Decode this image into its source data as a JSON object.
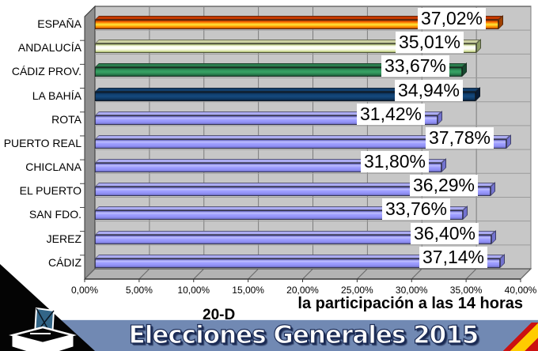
{
  "chart_data": {
    "type": "bar",
    "orientation": "horizontal",
    "style": "3d",
    "title": "",
    "xlabel": "",
    "ylabel": "",
    "xlim": [
      0,
      40
    ],
    "x_tick_step": 5,
    "x_tick_labels": [
      "0,00%",
      "5,00%",
      "10,00%",
      "15,00%",
      "20,00%",
      "25,00%",
      "30,00%",
      "35,00%",
      "40,00%"
    ],
    "grid": true,
    "legend": false,
    "categories": [
      "ESPAÑA",
      "ANDALUCÍA",
      "CÁDIZ PROV.",
      "LA BAHÍA",
      "ROTA",
      "PUERTO REAL",
      "CHICLANA",
      "EL PUERTO",
      "SAN FDO.",
      "JEREZ",
      "CÁDIZ"
    ],
    "values": [
      37.02,
      35.01,
      33.67,
      34.94,
      31.42,
      37.78,
      31.8,
      36.29,
      33.76,
      36.4,
      37.14
    ],
    "value_labels": [
      "37,02%",
      "35,01%",
      "33,67%",
      "34,94%",
      "31,42%",
      "37,78%",
      "31,80%",
      "36,29%",
      "33,76%",
      "36,40%",
      "37,14%"
    ],
    "series_color_keys": [
      "espana",
      "andalucia",
      "cadiz_prov",
      "la_bahia",
      "municipality",
      "municipality",
      "municipality",
      "municipality",
      "municipality",
      "municipality",
      "municipality"
    ],
    "palette": {
      "espana": {
        "gradient": [
          "#b83400",
          "#ff7a00",
          "#ffe838",
          "#ff9400",
          "#bf4e00"
        ],
        "cap_top": "#c63a00",
        "cap_side": "#a04000"
      },
      "andalucia": {
        "gradient": [
          "#9dae62",
          "#f6fae4",
          "#ffffff",
          "#eaf0c4",
          "#a9ba66"
        ],
        "cap_top": "#cdd2a2",
        "cap_side": "#8f9e66"
      },
      "cadiz_prov": {
        "gradient": [
          "#1d5a38",
          "#2f9059",
          "#38a365",
          "#2b8351",
          "#1d5a38"
        ],
        "cap_top": "#2b7e4e",
        "cap_side": "#174930"
      },
      "la_bahia": {
        "gradient": [
          "#0a2342",
          "#10406f",
          "#15497d",
          "#0e3a66",
          "#0a2342"
        ],
        "cap_top": "#123f6d",
        "cap_side": "#071c36"
      },
      "municipality": {
        "gradient": [
          "#6161bd",
          "#bdbdff",
          "#9c9cff",
          "#9090f4",
          "#6c6cc2"
        ],
        "cap_top": "#ababf2",
        "cap_side": "#7373cf"
      }
    },
    "plot": {
      "bg": "#c7c7c7",
      "wall": "#8f8f8f",
      "floor": "#b3b3b3",
      "gridline": "#7d7d7d",
      "band_line": "#9b9b9b",
      "frame": "#333333"
    }
  },
  "captions": {
    "subtitle": "la participación a las 14 horas",
    "date_tag": "20-D",
    "banner_title": "Elecciones Generales 2015"
  },
  "footer": {
    "banner_bg": "#7189b3",
    "banner_text_color": "#ffffff",
    "banner_outline": "#1b2b55"
  },
  "decorations": {
    "corner_triangle_color": "#040404",
    "flag_red": "#cc1111",
    "flag_yellow": "#ffcc00",
    "ballot_envelope_color": "#336688",
    "ballot_box_icon": "ballot-box-icon"
  }
}
